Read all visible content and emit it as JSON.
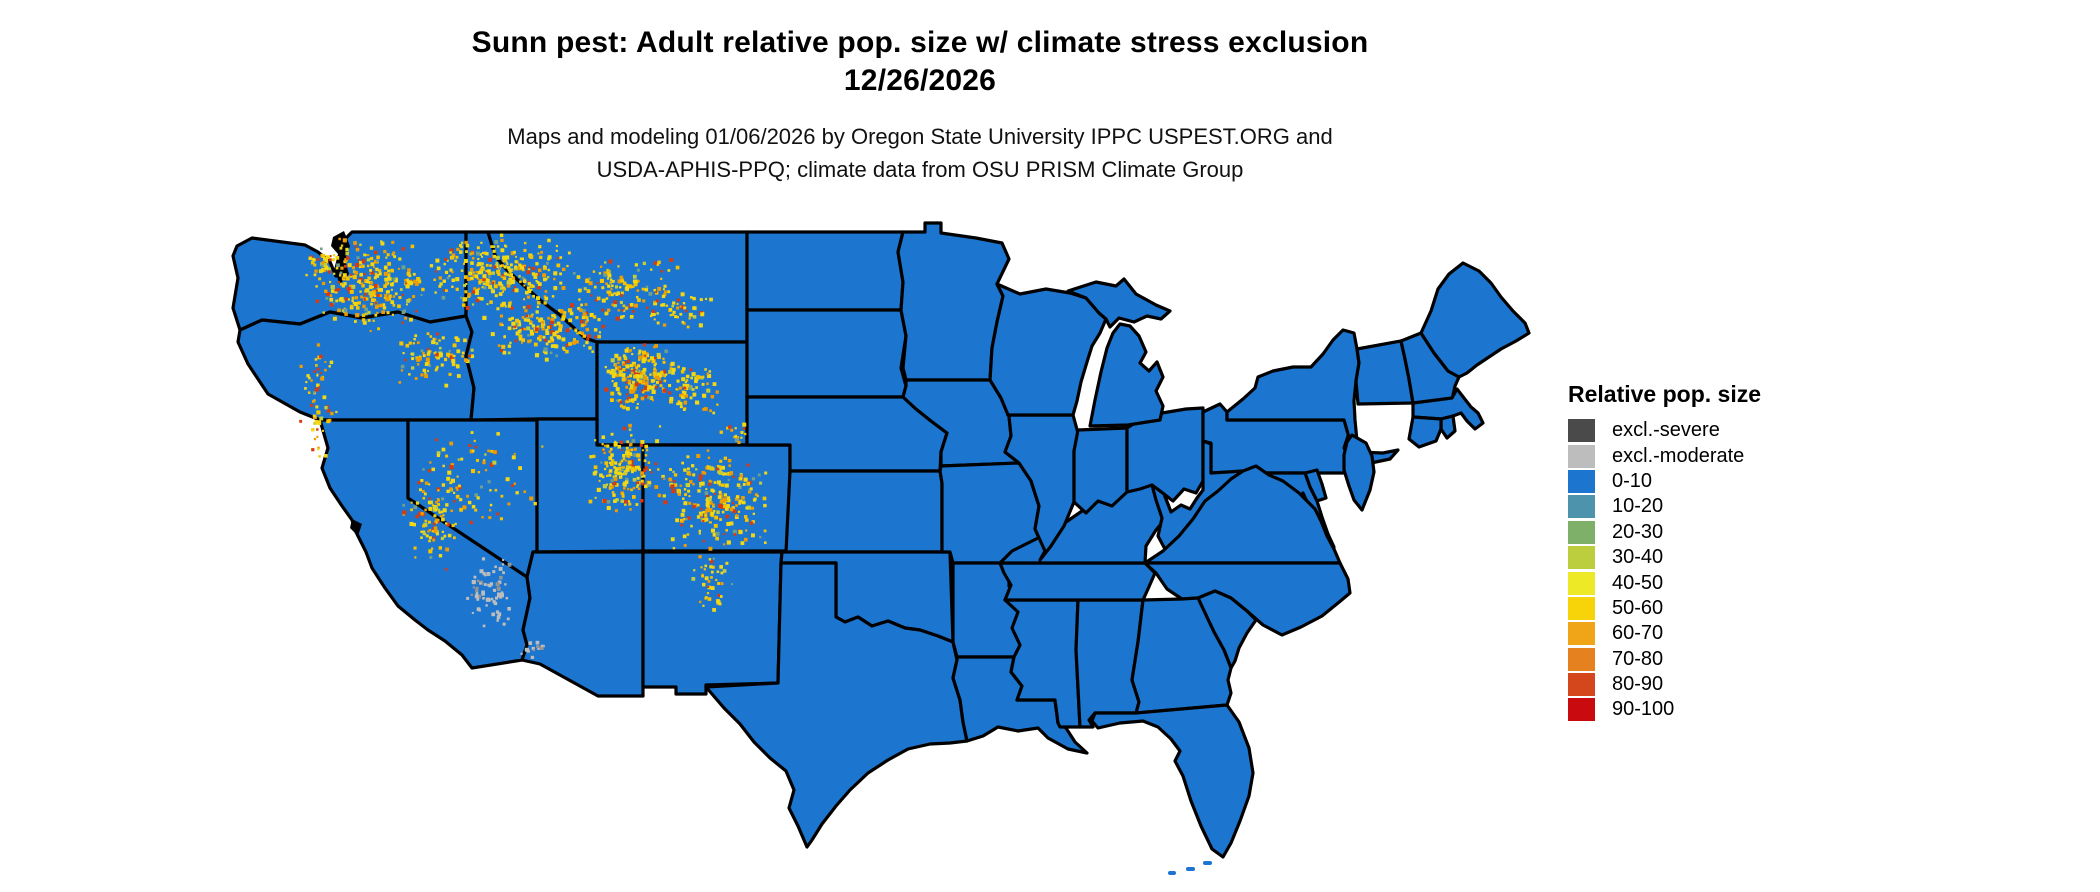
{
  "header": {
    "title_line1": "Sunn pest: Adult relative pop. size w/ climate stress exclusion",
    "title_line2": "12/26/2026",
    "subtitle_line1": "Maps and modeling 01/06/2026 by Oregon State University IPPC USPEST.ORG and",
    "subtitle_line2": "USDA-APHIS-PPQ; climate data from OSU PRISM Climate Group"
  },
  "legend": {
    "title": "Relative pop. size",
    "items": [
      {
        "label": "excl.-severe",
        "color": "#4a4a4a"
      },
      {
        "label": "excl.-moderate",
        "color": "#bdbdbd"
      },
      {
        "label": "0-10",
        "color": "#1c75ce"
      },
      {
        "label": "10-20",
        "color": "#4e93ac"
      },
      {
        "label": "20-30",
        "color": "#7fb069"
      },
      {
        "label": "30-40",
        "color": "#bcce3e"
      },
      {
        "label": "40-50",
        "color": "#eee926"
      },
      {
        "label": "50-60",
        "color": "#f7d40a"
      },
      {
        "label": "60-70",
        "color": "#f0a519"
      },
      {
        "label": "70-80",
        "color": "#e5811f"
      },
      {
        "label": "80-90",
        "color": "#d4471c"
      },
      {
        "label": "90-100",
        "color": "#c90b10"
      }
    ]
  },
  "map": {
    "base_fill": "#1c75ce",
    "border_color": "#000000",
    "border_width": 3.2,
    "water_color": "#ffffff"
  },
  "speckles": {
    "palette": [
      {
        "color": "#f2d713",
        "weight": 0.4
      },
      {
        "color": "#f5c400",
        "weight": 0.18
      },
      {
        "color": "#ee9c00",
        "weight": 0.18
      },
      {
        "color": "#d83a10",
        "weight": 0.14
      },
      {
        "color": "#c0ce3e",
        "weight": 0.06
      },
      {
        "color": "#6fa08c",
        "weight": 0.04
      }
    ],
    "gray_palette": [
      {
        "color": "#bdbdbd",
        "weight": 0.8
      },
      {
        "color": "#949494",
        "weight": 0.2
      }
    ],
    "regions": [
      [
        312,
        234,
        112,
        100,
        270
      ],
      [
        300,
        250,
        42,
        26,
        30
      ],
      [
        425,
        232,
        148,
        82,
        300
      ],
      [
        480,
        298,
        132,
        62,
        170
      ],
      [
        560,
        253,
        122,
        72,
        130
      ],
      [
        642,
        286,
        72,
        42,
        45
      ],
      [
        598,
        340,
        72,
        72,
        210
      ],
      [
        650,
        358,
        72,
        58,
        85
      ],
      [
        718,
        418,
        32,
        26,
        16
      ],
      [
        390,
        324,
        88,
        60,
        95
      ],
      [
        298,
        332,
        40,
        132,
        60
      ],
      [
        585,
        420,
        78,
        92,
        180
      ],
      [
        658,
        446,
        112,
        104,
        250
      ],
      [
        688,
        553,
        44,
        62,
        42
      ],
      [
        395,
        455,
        72,
        118,
        115
      ],
      [
        420,
        425,
        122,
        62,
        35
      ],
      [
        440,
        468,
        95,
        62,
        30
      ]
    ],
    "gray_regions": [
      [
        463,
        553,
        52,
        78,
        65
      ],
      [
        518,
        638,
        26,
        20,
        16
      ]
    ]
  }
}
